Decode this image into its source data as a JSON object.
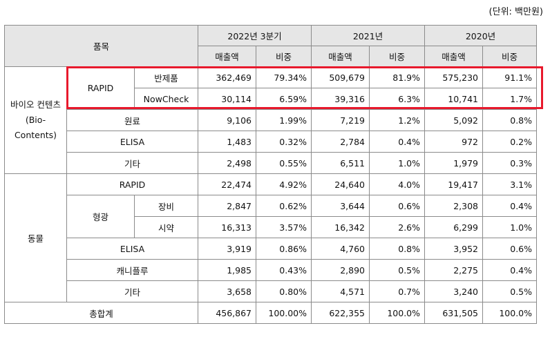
{
  "unit_note": "(단위: 백만원)",
  "header": {
    "item": "품목",
    "periods": [
      "2022년 3분기",
      "2021년",
      "2020년"
    ],
    "sales": "매출액",
    "share": "비중"
  },
  "groups": {
    "bio": "바이오 컨텐츠 (Bio-Contents)",
    "animal": "동물",
    "rapid": "RAPID",
    "fluor": "형광"
  },
  "rows": {
    "bio_rapid_finished": {
      "label": "반제품",
      "v": [
        "362,469",
        "79.34%",
        "509,679",
        "81.9%",
        "575,230",
        "91.1%"
      ]
    },
    "bio_rapid_nowcheck": {
      "label": "NowCheck",
      "v": [
        "30,114",
        "6.59%",
        "39,316",
        "6.3%",
        "10,741",
        "1.7%"
      ]
    },
    "bio_raw": {
      "label": "원료",
      "v": [
        "9,106",
        "1.99%",
        "7,219",
        "1.2%",
        "5,092",
        "0.8%"
      ]
    },
    "bio_elisa": {
      "label": "ELISA",
      "v": [
        "1,483",
        "0.32%",
        "2,784",
        "0.4%",
        "972",
        "0.2%"
      ]
    },
    "bio_etc": {
      "label": "기타",
      "v": [
        "2,498",
        "0.55%",
        "6,511",
        "1.0%",
        "1,979",
        "0.3%"
      ]
    },
    "ani_rapid": {
      "label": "RAPID",
      "v": [
        "22,474",
        "4.92%",
        "24,640",
        "4.0%",
        "19,417",
        "3.1%"
      ]
    },
    "ani_fluor_equip": {
      "label": "장비",
      "v": [
        "2,847",
        "0.62%",
        "3,644",
        "0.6%",
        "2,308",
        "0.4%"
      ]
    },
    "ani_fluor_reagent": {
      "label": "시약",
      "v": [
        "16,313",
        "3.57%",
        "16,342",
        "2.6%",
        "6,299",
        "1.0%"
      ]
    },
    "ani_elisa": {
      "label": "ELISA",
      "v": [
        "3,919",
        "0.86%",
        "4,760",
        "0.8%",
        "3,952",
        "0.6%"
      ]
    },
    "ani_canifluro": {
      "label": "캐니플루",
      "v": [
        "1,985",
        "0.43%",
        "2,890",
        "0.5%",
        "2,275",
        "0.4%"
      ]
    },
    "ani_etc": {
      "label": "기타",
      "v": [
        "3,658",
        "0.80%",
        "4,571",
        "0.7%",
        "3,240",
        "0.5%"
      ]
    },
    "total": {
      "label": "총합계",
      "v": [
        "456,867",
        "100.00%",
        "622,355",
        "100.0%",
        "631,505",
        "100.0%"
      ]
    }
  },
  "highlight_color": "#e8192c"
}
